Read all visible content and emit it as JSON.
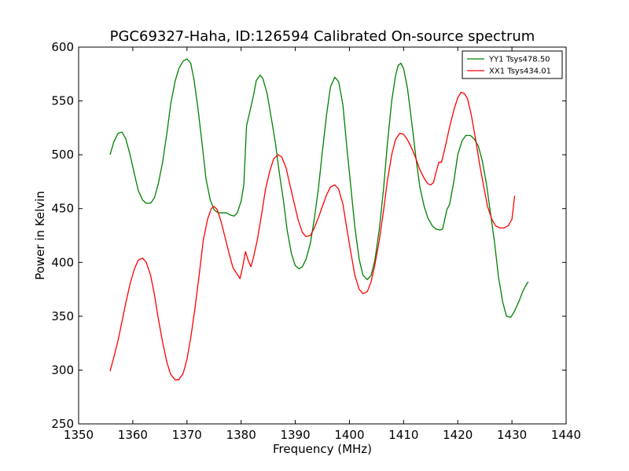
{
  "chart_data": {
    "type": "line",
    "title": "PGC69327-Haha, ID:126594 Calibrated On-source spectrum",
    "xlabel": "Frequency (MHz)",
    "ylabel": "Power in Kelvin",
    "xlim": [
      1350,
      1440
    ],
    "ylim": [
      250,
      600
    ],
    "x_ticks": [
      1350,
      1360,
      1370,
      1380,
      1390,
      1400,
      1410,
      1420,
      1430,
      1440
    ],
    "y_ticks": [
      250,
      300,
      350,
      400,
      450,
      500,
      550,
      600
    ],
    "grid": false,
    "legend_position": "top-right",
    "series": [
      {
        "name": "YY1 Tsys478.50",
        "color": "#008000",
        "points": [
          [
            1355.8,
            500
          ],
          [
            1356.5,
            512
          ],
          [
            1357.3,
            520
          ],
          [
            1358.0,
            521
          ],
          [
            1358.7,
            515
          ],
          [
            1359.5,
            500
          ],
          [
            1360.3,
            482
          ],
          [
            1361.0,
            467
          ],
          [
            1361.8,
            458
          ],
          [
            1362.5,
            455
          ],
          [
            1363.3,
            455
          ],
          [
            1364.0,
            460
          ],
          [
            1364.7,
            473
          ],
          [
            1365.5,
            493
          ],
          [
            1366.3,
            520
          ],
          [
            1367.0,
            547
          ],
          [
            1367.8,
            568
          ],
          [
            1368.5,
            580
          ],
          [
            1369.3,
            587
          ],
          [
            1370.0,
            589
          ],
          [
            1370.7,
            585
          ],
          [
            1371.3,
            570
          ],
          [
            1372.0,
            544
          ],
          [
            1372.8,
            510
          ],
          [
            1373.5,
            478
          ],
          [
            1374.3,
            458
          ],
          [
            1375.0,
            449
          ],
          [
            1375.8,
            446
          ],
          [
            1376.5,
            446
          ],
          [
            1377.3,
            446
          ],
          [
            1378.0,
            444
          ],
          [
            1378.7,
            443
          ],
          [
            1379.3,
            446
          ],
          [
            1380.0,
            457
          ],
          [
            1380.5,
            472
          ],
          [
            1381.0,
            527
          ],
          [
            1381.6,
            540
          ],
          [
            1382.2,
            553
          ],
          [
            1382.8,
            569
          ],
          [
            1383.5,
            574
          ],
          [
            1384.0,
            571
          ],
          [
            1384.8,
            557
          ],
          [
            1385.5,
            536
          ],
          [
            1386.3,
            512
          ],
          [
            1387.0,
            485
          ],
          [
            1387.8,
            458
          ],
          [
            1388.5,
            430
          ],
          [
            1389.3,
            408
          ],
          [
            1390.0,
            397
          ],
          [
            1390.7,
            394
          ],
          [
            1391.3,
            396
          ],
          [
            1392.0,
            403
          ],
          [
            1392.8,
            418
          ],
          [
            1393.5,
            440
          ],
          [
            1394.3,
            470
          ],
          [
            1395.0,
            503
          ],
          [
            1395.8,
            538
          ],
          [
            1396.5,
            563
          ],
          [
            1397.3,
            572
          ],
          [
            1398.0,
            568
          ],
          [
            1398.8,
            546
          ],
          [
            1399.5,
            508
          ],
          [
            1400.3,
            468
          ],
          [
            1401.0,
            433
          ],
          [
            1401.8,
            403
          ],
          [
            1402.5,
            388
          ],
          [
            1403.3,
            384
          ],
          [
            1404.0,
            388
          ],
          [
            1404.7,
            402
          ],
          [
            1405.5,
            430
          ],
          [
            1406.3,
            468
          ],
          [
            1407.0,
            510
          ],
          [
            1407.8,
            550
          ],
          [
            1408.5,
            573
          ],
          [
            1409.0,
            583
          ],
          [
            1409.5,
            585
          ],
          [
            1410.0,
            580
          ],
          [
            1410.7,
            562
          ],
          [
            1411.5,
            530
          ],
          [
            1412.3,
            496
          ],
          [
            1413.0,
            470
          ],
          [
            1413.8,
            452
          ],
          [
            1414.5,
            441
          ],
          [
            1415.3,
            434
          ],
          [
            1416.0,
            431
          ],
          [
            1416.7,
            430
          ],
          [
            1417.2,
            431
          ],
          [
            1418.0,
            449
          ],
          [
            1418.5,
            454
          ],
          [
            1419.3,
            476
          ],
          [
            1420.0,
            500
          ],
          [
            1420.8,
            513
          ],
          [
            1421.5,
            518
          ],
          [
            1422.3,
            518
          ],
          [
            1423.0,
            515
          ],
          [
            1423.8,
            508
          ],
          [
            1424.5,
            495
          ],
          [
            1425.3,
            473
          ],
          [
            1426.0,
            447
          ],
          [
            1426.8,
            418
          ],
          [
            1427.5,
            387
          ],
          [
            1428.3,
            363
          ],
          [
            1429.0,
            350
          ],
          [
            1429.8,
            349
          ],
          [
            1430.5,
            355
          ],
          [
            1431.3,
            364
          ],
          [
            1432.0,
            373
          ],
          [
            1432.5,
            378
          ],
          [
            1433.0,
            382
          ]
        ]
      },
      {
        "name": "XX1 Tsys434.01",
        "color": "#ff0000",
        "points": [
          [
            1355.8,
            299
          ],
          [
            1356.5,
            312
          ],
          [
            1357.3,
            328
          ],
          [
            1358.0,
            345
          ],
          [
            1358.7,
            362
          ],
          [
            1359.5,
            380
          ],
          [
            1360.3,
            394
          ],
          [
            1361.0,
            402
          ],
          [
            1361.8,
            404
          ],
          [
            1362.5,
            400
          ],
          [
            1363.3,
            388
          ],
          [
            1364.0,
            370
          ],
          [
            1364.7,
            348
          ],
          [
            1365.5,
            326
          ],
          [
            1366.3,
            307
          ],
          [
            1367.0,
            296
          ],
          [
            1367.8,
            291
          ],
          [
            1368.5,
            291
          ],
          [
            1369.3,
            297
          ],
          [
            1370.0,
            310
          ],
          [
            1370.7,
            330
          ],
          [
            1371.5,
            358
          ],
          [
            1372.3,
            390
          ],
          [
            1373.0,
            420
          ],
          [
            1373.8,
            440
          ],
          [
            1374.5,
            450
          ],
          [
            1375.0,
            452
          ],
          [
            1375.6,
            449
          ],
          [
            1376.3,
            438
          ],
          [
            1377.0,
            424
          ],
          [
            1377.8,
            408
          ],
          [
            1378.5,
            395
          ],
          [
            1379.3,
            389
          ],
          [
            1379.8,
            385
          ],
          [
            1380.3,
            396
          ],
          [
            1380.8,
            410
          ],
          [
            1381.3,
            402
          ],
          [
            1381.8,
            396
          ],
          [
            1382.3,
            405
          ],
          [
            1383.0,
            421
          ],
          [
            1383.8,
            445
          ],
          [
            1384.5,
            468
          ],
          [
            1385.3,
            485
          ],
          [
            1386.0,
            496
          ],
          [
            1386.8,
            500
          ],
          [
            1387.5,
            498
          ],
          [
            1388.3,
            488
          ],
          [
            1389.0,
            472
          ],
          [
            1389.8,
            455
          ],
          [
            1390.5,
            440
          ],
          [
            1391.3,
            428
          ],
          [
            1392.0,
            424
          ],
          [
            1392.8,
            425
          ],
          [
            1393.5,
            432
          ],
          [
            1394.3,
            442
          ],
          [
            1395.0,
            452
          ],
          [
            1395.8,
            463
          ],
          [
            1396.5,
            470
          ],
          [
            1397.3,
            472
          ],
          [
            1398.0,
            468
          ],
          [
            1398.8,
            454
          ],
          [
            1399.5,
            432
          ],
          [
            1400.3,
            408
          ],
          [
            1401.0,
            388
          ],
          [
            1401.8,
            375
          ],
          [
            1402.5,
            371
          ],
          [
            1403.3,
            373
          ],
          [
            1404.0,
            382
          ],
          [
            1404.7,
            398
          ],
          [
            1405.5,
            420
          ],
          [
            1406.3,
            448
          ],
          [
            1407.0,
            476
          ],
          [
            1407.8,
            500
          ],
          [
            1408.5,
            514
          ],
          [
            1409.3,
            520
          ],
          [
            1410.0,
            519
          ],
          [
            1410.7,
            514
          ],
          [
            1411.5,
            506
          ],
          [
            1412.3,
            496
          ],
          [
            1413.0,
            486
          ],
          [
            1413.8,
            478
          ],
          [
            1414.5,
            473
          ],
          [
            1415.0,
            472
          ],
          [
            1415.5,
            474
          ],
          [
            1416.0,
            484
          ],
          [
            1416.5,
            493
          ],
          [
            1417.0,
            493
          ],
          [
            1417.8,
            510
          ],
          [
            1418.5,
            526
          ],
          [
            1419.3,
            542
          ],
          [
            1420.0,
            553
          ],
          [
            1420.6,
            558
          ],
          [
            1421.2,
            557
          ],
          [
            1421.8,
            552
          ],
          [
            1422.5,
            537
          ],
          [
            1423.3,
            514
          ],
          [
            1424.0,
            492
          ],
          [
            1424.8,
            470
          ],
          [
            1425.5,
            452
          ],
          [
            1426.3,
            440
          ],
          [
            1427.0,
            434
          ],
          [
            1427.8,
            432
          ],
          [
            1428.5,
            432
          ],
          [
            1429.3,
            434
          ],
          [
            1430.0,
            440
          ],
          [
            1430.5,
            462
          ]
        ]
      }
    ]
  }
}
